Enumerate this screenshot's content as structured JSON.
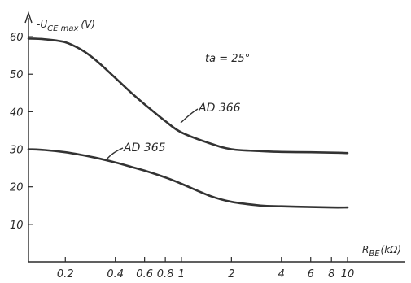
{
  "chart_data": {
    "type": "line",
    "ylabel": "-U",
    "ylabel_sub": "CE max",
    "ylabel_unit": "(V)",
    "xlabel": "R",
    "xlabel_sub": "BE",
    "xlabel_unit": "(kΩ)",
    "annotation": "ta = 25°",
    "x_scale": "log",
    "xlim": [
      0.12,
      10
    ],
    "ylim": [
      0,
      65
    ],
    "x_ticks": [
      {
        "value": 0.2,
        "label": "0.2"
      },
      {
        "value": 0.4,
        "label": "0.4"
      },
      {
        "value": 0.6,
        "label": "0.6"
      },
      {
        "value": 0.8,
        "label": "0.8"
      },
      {
        "value": 1,
        "label": "1"
      },
      {
        "value": 2,
        "label": "2"
      },
      {
        "value": 4,
        "label": "4"
      },
      {
        "value": 6,
        "label": "6"
      },
      {
        "value": 8,
        "label": "8"
      },
      {
        "value": 10,
        "label": "10"
      }
    ],
    "y_ticks": [
      {
        "value": 10,
        "label": "10"
      },
      {
        "value": 20,
        "label": "20"
      },
      {
        "value": 30,
        "label": "30"
      },
      {
        "value": 40,
        "label": "40"
      },
      {
        "value": 50,
        "label": "50"
      },
      {
        "value": 60,
        "label": "60"
      }
    ],
    "grid": false,
    "series": [
      {
        "name": "AD 366",
        "x": [
          0.12,
          0.15,
          0.2,
          0.25,
          0.3,
          0.4,
          0.5,
          0.6,
          0.8,
          1,
          1.5,
          2,
          3,
          4,
          6,
          8,
          10
        ],
        "y": [
          59.5,
          59.3,
          58.5,
          56.5,
          54,
          49,
          45,
          42,
          37.5,
          34.5,
          31.5,
          30,
          29.5,
          29.3,
          29.2,
          29.1,
          29
        ]
      },
      {
        "name": "AD 365",
        "x": [
          0.12,
          0.15,
          0.2,
          0.25,
          0.3,
          0.4,
          0.5,
          0.6,
          0.8,
          1,
          1.5,
          2,
          3,
          4,
          6,
          8,
          10
        ],
        "y": [
          30,
          29.8,
          29.2,
          28.5,
          27.8,
          26.5,
          25.3,
          24.3,
          22.5,
          20.8,
          17.5,
          16,
          15,
          14.8,
          14.6,
          14.5,
          14.5
        ]
      }
    ]
  }
}
